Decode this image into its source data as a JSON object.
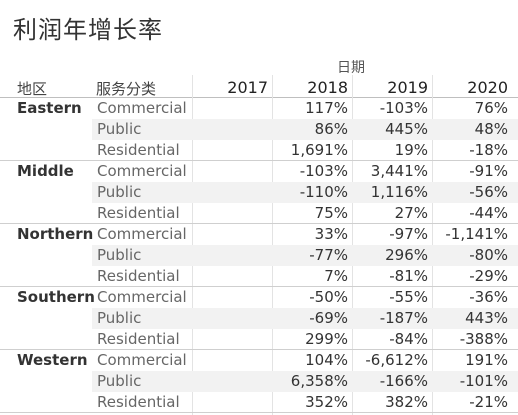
{
  "title": "利润年增长率",
  "column_group": "日期",
  "headers": {
    "region": "地区",
    "service": "服务分类",
    "years": [
      "2017",
      "2018",
      "2019",
      "2020"
    ]
  },
  "groups": [
    {
      "region": "Eastern",
      "rows": [
        {
          "service": "Commercial",
          "values": [
            "",
            "117%",
            "-103%",
            "76%"
          ]
        },
        {
          "service": "Public",
          "values": [
            "",
            "86%",
            "445%",
            "48%"
          ]
        },
        {
          "service": "Residential",
          "values": [
            "",
            "1,691%",
            "19%",
            "-18%"
          ]
        }
      ]
    },
    {
      "region": "Middle",
      "rows": [
        {
          "service": "Commercial",
          "values": [
            "",
            "-103%",
            "3,441%",
            "-91%"
          ]
        },
        {
          "service": "Public",
          "values": [
            "",
            "-110%",
            "1,116%",
            "-56%"
          ]
        },
        {
          "service": "Residential",
          "values": [
            "",
            "75%",
            "27%",
            "-44%"
          ]
        }
      ]
    },
    {
      "region": "Northern",
      "rows": [
        {
          "service": "Commercial",
          "values": [
            "",
            "33%",
            "-97%",
            "-1,141%"
          ]
        },
        {
          "service": "Public",
          "values": [
            "",
            "-77%",
            "296%",
            "-80%"
          ]
        },
        {
          "service": "Residential",
          "values": [
            "",
            "7%",
            "-81%",
            "-29%"
          ]
        }
      ]
    },
    {
      "region": "Southern",
      "rows": [
        {
          "service": "Commercial",
          "values": [
            "",
            "-50%",
            "-55%",
            "-36%"
          ]
        },
        {
          "service": "Public",
          "values": [
            "",
            "-69%",
            "-187%",
            "443%"
          ]
        },
        {
          "service": "Residential",
          "values": [
            "",
            "299%",
            "-84%",
            "-388%"
          ]
        }
      ]
    },
    {
      "region": "Western",
      "rows": [
        {
          "service": "Commercial",
          "values": [
            "",
            "104%",
            "-6,612%",
            "191%"
          ]
        },
        {
          "service": "Public",
          "values": [
            "",
            "6,358%",
            "-166%",
            "-101%"
          ]
        },
        {
          "service": "Residential",
          "values": [
            "",
            "352%",
            "382%",
            "-21%"
          ]
        }
      ]
    }
  ]
}
